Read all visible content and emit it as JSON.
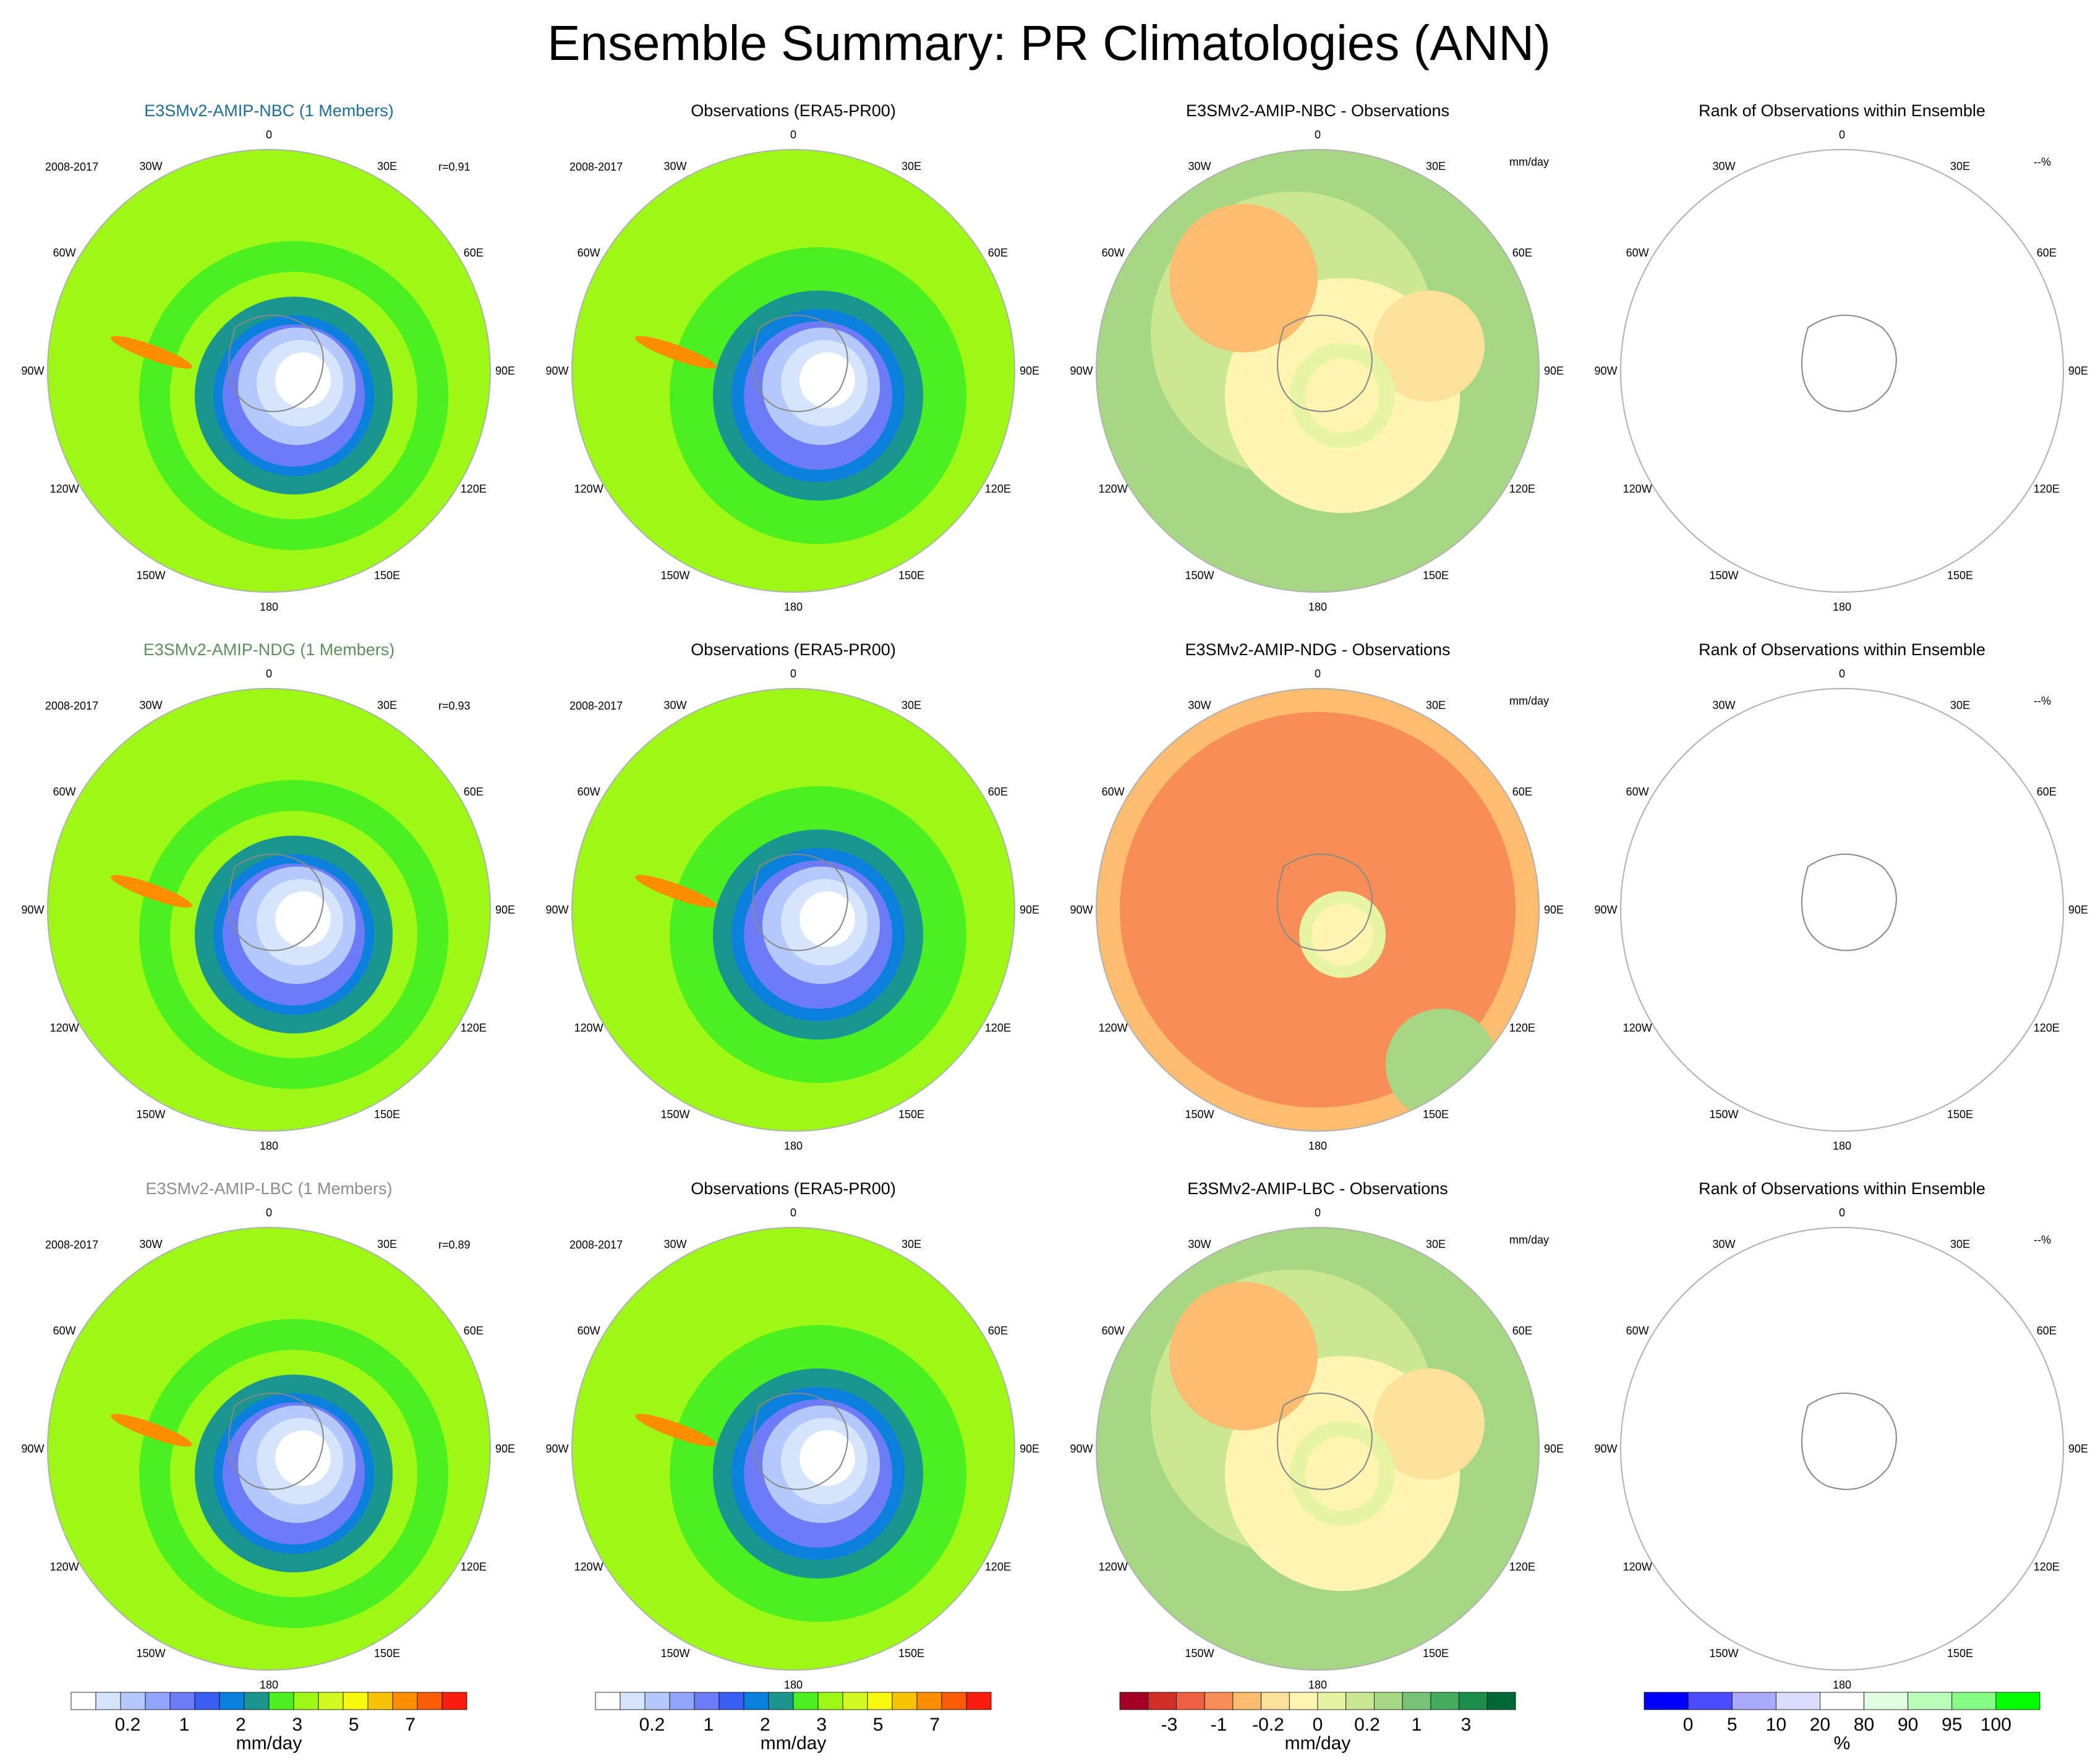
{
  "title": "Ensemble Summary: PR Climatologies (ANN)",
  "colors": {
    "nbc": "#1f6d94",
    "ndg": "#5d8f5d",
    "lbc": "#8c8c8c",
    "abs_scale": [
      "#ffffff",
      "#d6e4fc",
      "#b4c8fb",
      "#8fa5fb",
      "#6c7cf7",
      "#3a5ef2",
      "#0b7fdc",
      "#1a9590",
      "#4cf021",
      "#9cf814",
      "#d2f820",
      "#f9f80f",
      "#f7c300",
      "#ff8d00",
      "#f95c05",
      "#f81d0e"
    ],
    "diff_scale": [
      "#a50026",
      "#d02e27",
      "#ed6041",
      "#f88e57",
      "#fdbd71",
      "#fde099",
      "#fff4b1",
      "#e6f4a3",
      "#cbe791",
      "#a6d884",
      "#76c375",
      "#45ab5f",
      "#198f4b",
      "#006837"
    ],
    "rank_scale": [
      "#0000ff",
      "#4c4cff",
      "#a9a9ff",
      "#dcdcff",
      "#ffffff",
      "#e3ffe3",
      "#baffba",
      "#85ff85",
      "#00ff00"
    ]
  },
  "panels": [
    {
      "title": "E3SMv2-AMIP-NBC (1 Members)",
      "title_color": "nbc",
      "period": "2008-2017",
      "corr": "r=0.91",
      "units": "",
      "kind": "model"
    },
    {
      "title": "Observations (ERA5-PR00)",
      "title_color": "",
      "period": "2008-2017",
      "corr": "",
      "units": "",
      "kind": "obs"
    },
    {
      "title": "E3SMv2-AMIP-NBC - Observations",
      "title_color": "",
      "period": "",
      "corr": "",
      "units": "mm/day",
      "kind": "diff"
    },
    {
      "title": "Rank of Observations within Ensemble",
      "title_color": "",
      "period": "",
      "corr": "",
      "units": "--%",
      "kind": "rank"
    },
    {
      "title": "E3SMv2-AMIP-NDG (1 Members)",
      "title_color": "ndg",
      "period": "2008-2017",
      "corr": "r=0.93",
      "units": "",
      "kind": "model"
    },
    {
      "title": "Observations (ERA5-PR00)",
      "title_color": "",
      "period": "2008-2017",
      "corr": "",
      "units": "",
      "kind": "obs"
    },
    {
      "title": "E3SMv2-AMIP-NDG - Observations",
      "title_color": "",
      "period": "",
      "corr": "",
      "units": "mm/day",
      "kind": "diff_ndg"
    },
    {
      "title": "Rank of Observations within Ensemble",
      "title_color": "",
      "period": "",
      "corr": "",
      "units": "--%",
      "kind": "rank"
    },
    {
      "title": "E3SMv2-AMIP-LBC (1 Members)",
      "title_color": "lbc",
      "period": "2008-2017",
      "corr": "r=0.89",
      "units": "",
      "kind": "model"
    },
    {
      "title": "Observations (ERA5-PR00)",
      "title_color": "",
      "period": "2008-2017",
      "corr": "",
      "units": "",
      "kind": "obs"
    },
    {
      "title": "E3SMv2-AMIP-LBC - Observations",
      "title_color": "",
      "period": "",
      "corr": "",
      "units": "mm/day",
      "kind": "diff"
    },
    {
      "title": "Rank of Observations within Ensemble",
      "title_color": "",
      "period": "",
      "corr": "",
      "units": "--%",
      "kind": "rank"
    }
  ],
  "lon_labels": [
    "0",
    "30E",
    "60E",
    "90E",
    "120E",
    "150E",
    "180",
    "150W",
    "120W",
    "90W",
    "60W",
    "30W"
  ],
  "colorbars": [
    {
      "kind": "abs",
      "ticks": [
        "0.2",
        "1",
        "2",
        "3",
        "5",
        "7"
      ],
      "unit": "mm/day"
    },
    {
      "kind": "abs",
      "ticks": [
        "0.2",
        "1",
        "2",
        "3",
        "5",
        "7"
      ],
      "unit": "mm/day"
    },
    {
      "kind": "diff",
      "ticks": [
        "-3",
        "-1",
        "-0.2",
        "0",
        "0.2",
        "1",
        "3"
      ],
      "unit": "mm/day"
    },
    {
      "kind": "rank",
      "ticks": [
        "0",
        "5",
        "10",
        "20",
        "80",
        "90",
        "95",
        "100"
      ],
      "unit": "%"
    }
  ],
  "chart_data": [
    {
      "type": "heatmap",
      "title": "E3SMv2-AMIP-NBC (1 Members)",
      "projection": "south-polar-stereographic",
      "period": "2008-2017",
      "pattern_correlation": 0.91,
      "units": "mm/day",
      "scale": "abs"
    },
    {
      "type": "heatmap",
      "title": "Observations (ERA5-PR00)",
      "projection": "south-polar-stereographic",
      "period": "2008-2017",
      "units": "mm/day",
      "scale": "abs"
    },
    {
      "type": "heatmap",
      "title": "E3SMv2-AMIP-NBC - Observations",
      "projection": "south-polar-stereographic",
      "units": "mm/day",
      "scale": "diff"
    },
    {
      "type": "heatmap",
      "title": "Rank of Observations within Ensemble",
      "projection": "south-polar-stereographic",
      "units": "%",
      "scale": "rank"
    },
    {
      "type": "heatmap",
      "title": "E3SMv2-AMIP-NDG (1 Members)",
      "projection": "south-polar-stereographic",
      "period": "2008-2017",
      "pattern_correlation": 0.93,
      "units": "mm/day",
      "scale": "abs"
    },
    {
      "type": "heatmap",
      "title": "Observations (ERA5-PR00)",
      "projection": "south-polar-stereographic",
      "period": "2008-2017",
      "units": "mm/day",
      "scale": "abs"
    },
    {
      "type": "heatmap",
      "title": "E3SMv2-AMIP-NDG - Observations",
      "projection": "south-polar-stereographic",
      "units": "mm/day",
      "scale": "diff"
    },
    {
      "type": "heatmap",
      "title": "Rank of Observations within Ensemble",
      "projection": "south-polar-stereographic",
      "units": "%",
      "scale": "rank"
    },
    {
      "type": "heatmap",
      "title": "E3SMv2-AMIP-LBC (1 Members)",
      "projection": "south-polar-stereographic",
      "period": "2008-2017",
      "pattern_correlation": 0.89,
      "units": "mm/day",
      "scale": "abs"
    },
    {
      "type": "heatmap",
      "title": "Observations (ERA5-PR00)",
      "projection": "south-polar-stereographic",
      "period": "2008-2017",
      "units": "mm/day",
      "scale": "abs"
    },
    {
      "type": "heatmap",
      "title": "E3SMv2-AMIP-LBC - Observations",
      "projection": "south-polar-stereographic",
      "units": "mm/day",
      "scale": "diff"
    },
    {
      "type": "heatmap",
      "title": "Rank of Observations within Ensemble",
      "projection": "south-polar-stereographic",
      "units": "%",
      "scale": "rank"
    }
  ]
}
